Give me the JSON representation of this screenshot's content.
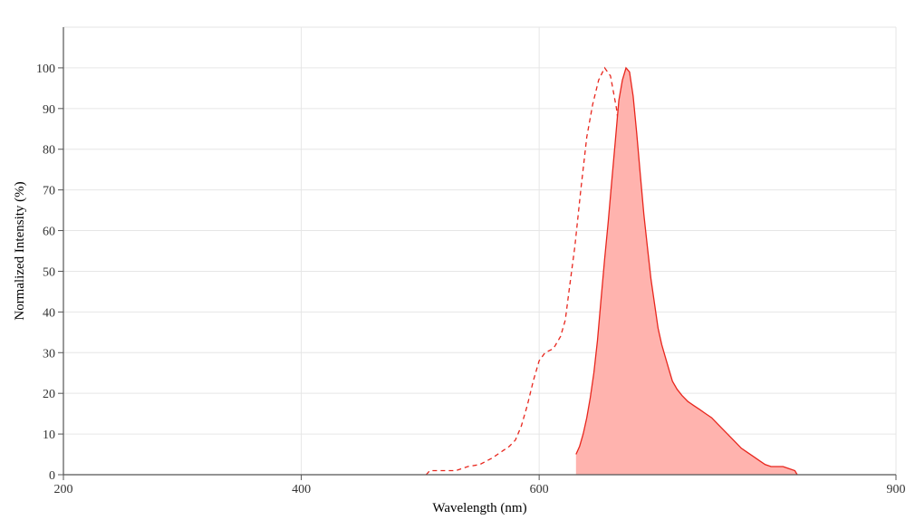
{
  "chart_data": {
    "type": "area",
    "title": "",
    "xlabel": "Wavelength (nm)",
    "ylabel": "Normalized Intensity (%)",
    "xlim": [
      200,
      900
    ],
    "ylim": [
      0,
      110
    ],
    "x_ticks": [
      200,
      400,
      600,
      900
    ],
    "y_ticks": [
      0,
      10,
      20,
      30,
      40,
      50,
      60,
      70,
      80,
      90,
      100
    ],
    "grid": true,
    "legend": "none",
    "colors": {
      "emission_fill": "#ffb3ae",
      "emission_line": "#e8261d",
      "excitation_line": "#e8261d",
      "grid": "#e6e6e6",
      "axis": "#555555"
    },
    "series": [
      {
        "style": "dashed-line",
        "points": [
          [
            505,
            0
          ],
          [
            508,
            1
          ],
          [
            520,
            1
          ],
          [
            530,
            1
          ],
          [
            540,
            2
          ],
          [
            550,
            2.5
          ],
          [
            560,
            4
          ],
          [
            570,
            6
          ],
          [
            575,
            7
          ],
          [
            580,
            8.5
          ],
          [
            585,
            12
          ],
          [
            590,
            17
          ],
          [
            595,
            23
          ],
          [
            600,
            28
          ],
          [
            605,
            30
          ],
          [
            612,
            31
          ],
          [
            618,
            34
          ],
          [
            622,
            38
          ],
          [
            625,
            45
          ],
          [
            630,
            56
          ],
          [
            635,
            70
          ],
          [
            640,
            83
          ],
          [
            645,
            91
          ],
          [
            650,
            97
          ],
          [
            655,
            100
          ],
          [
            660,
            98
          ],
          [
            665,
            90
          ],
          [
            670,
            78
          ],
          [
            673,
            68
          ],
          [
            676,
            57
          ],
          [
            680,
            42
          ],
          [
            684,
            30
          ],
          [
            688,
            19
          ],
          [
            692,
            11
          ],
          [
            697,
            6
          ],
          [
            702,
            4
          ],
          [
            707,
            2
          ],
          [
            710,
            0
          ]
        ]
      },
      {
        "style": "filled-area",
        "points": [
          [
            631,
            5
          ],
          [
            634,
            7
          ],
          [
            637,
            10
          ],
          [
            640,
            14
          ],
          [
            643,
            19
          ],
          [
            646,
            25
          ],
          [
            649,
            33
          ],
          [
            652,
            43
          ],
          [
            655,
            53
          ],
          [
            658,
            62
          ],
          [
            661,
            72
          ],
          [
            664,
            82
          ],
          [
            667,
            92
          ],
          [
            670,
            97
          ],
          [
            673,
            100
          ],
          [
            676,
            99
          ],
          [
            679,
            93
          ],
          [
            682,
            84
          ],
          [
            685,
            74
          ],
          [
            688,
            64
          ],
          [
            691,
            56
          ],
          [
            694,
            48
          ],
          [
            697,
            42
          ],
          [
            700,
            36
          ],
          [
            703,
            32
          ],
          [
            706,
            29
          ],
          [
            709,
            26
          ],
          [
            712,
            23
          ],
          [
            716,
            21
          ],
          [
            720,
            19.5
          ],
          [
            725,
            18
          ],
          [
            730,
            17
          ],
          [
            735,
            16
          ],
          [
            740,
            15
          ],
          [
            745,
            14
          ],
          [
            750,
            12.5
          ],
          [
            755,
            11
          ],
          [
            760,
            9.5
          ],
          [
            765,
            8
          ],
          [
            770,
            6.5
          ],
          [
            775,
            5.5
          ],
          [
            780,
            4.5
          ],
          [
            785,
            3.5
          ],
          [
            790,
            2.5
          ],
          [
            795,
            2
          ],
          [
            800,
            2
          ],
          [
            805,
            2
          ],
          [
            810,
            1.5
          ],
          [
            815,
            1
          ],
          [
            817,
            0
          ]
        ]
      }
    ]
  }
}
